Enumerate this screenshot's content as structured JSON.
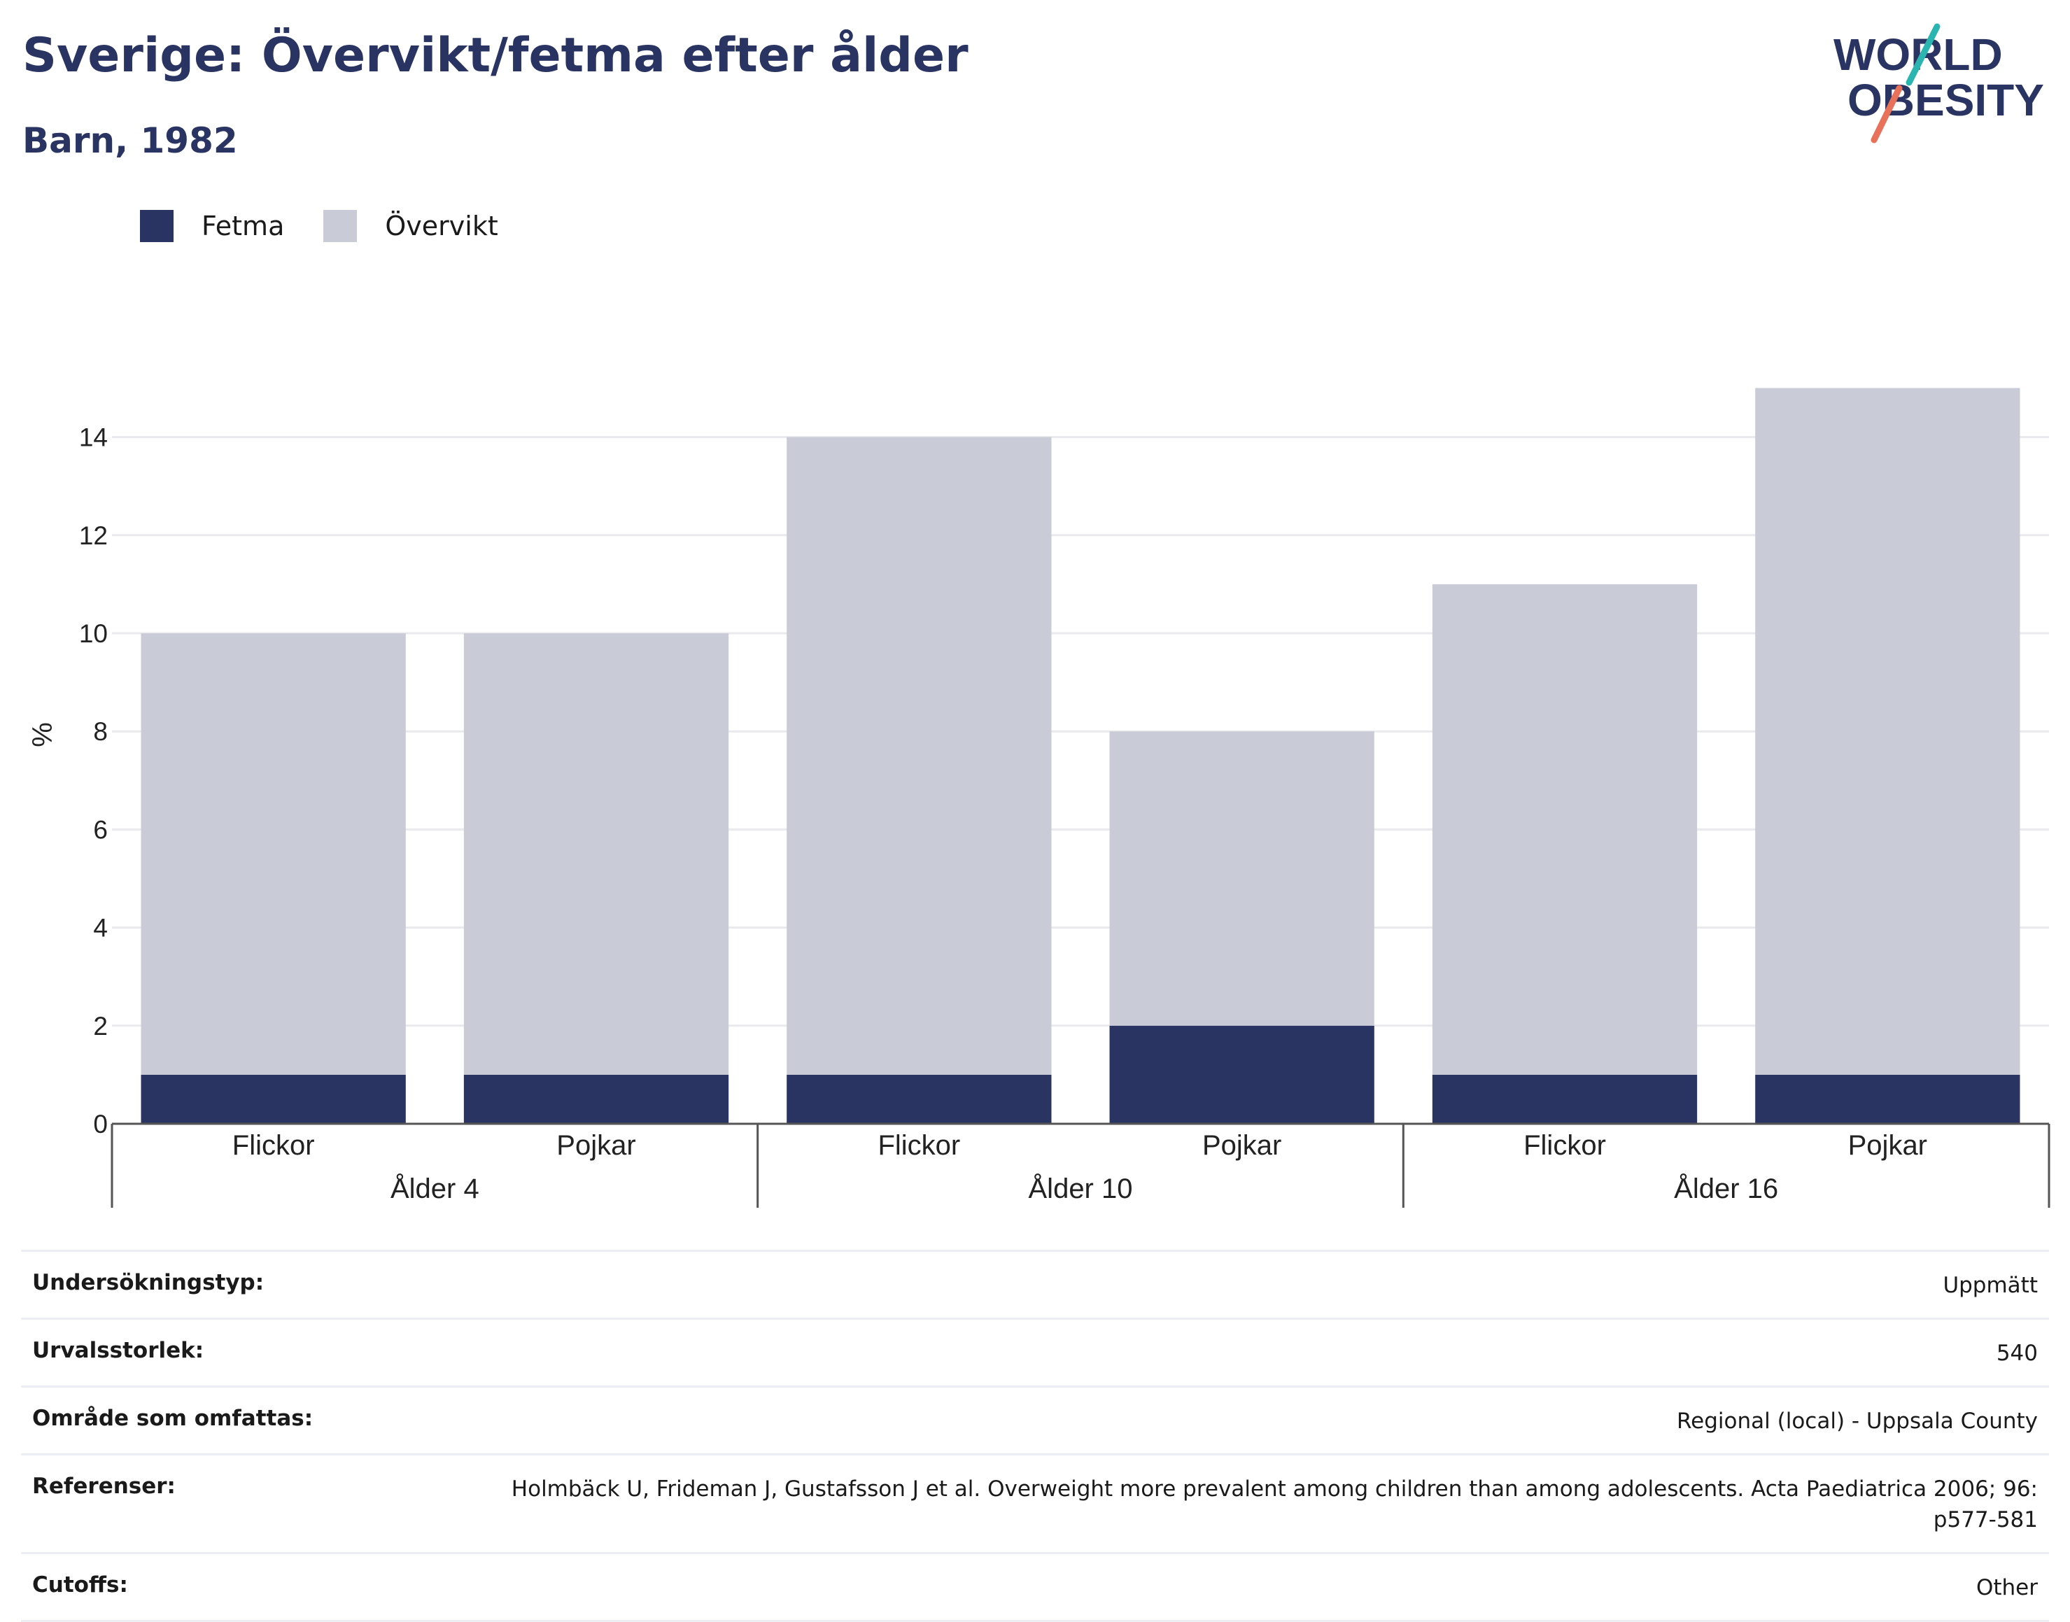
{
  "header": {
    "title": "Sverige: Övervikt/fetma efter ålder",
    "subtitle": "Barn, 1982",
    "logo_line1": "WORLD",
    "logo_line2": "OBESITY"
  },
  "colors": {
    "fetma": "#2a3462",
    "overvikt": "#c9cbd6",
    "logo_teal": "#2bb5b0",
    "logo_coral": "#e8715a"
  },
  "chart_data": {
    "type": "bar",
    "stacked": true,
    "ylabel": "%",
    "ylim": [
      0,
      15.9
    ],
    "yticks": [
      0,
      2,
      4,
      6,
      8,
      10,
      12,
      14
    ],
    "grid": true,
    "legend_placement": "top-left",
    "groups": [
      {
        "label": "Ålder 4",
        "categories": [
          "Flickor",
          "Pojkar"
        ]
      },
      {
        "label": "Ålder 10",
        "categories": [
          "Flickor",
          "Pojkar"
        ]
      },
      {
        "label": "Ålder 16",
        "categories": [
          "Flickor",
          "Pojkar"
        ]
      }
    ],
    "series": [
      {
        "name": "Fetma",
        "values": [
          1,
          1,
          1,
          2,
          1,
          1
        ]
      },
      {
        "name": "Övervikt",
        "values": [
          9,
          9,
          13,
          6,
          10,
          14
        ]
      }
    ]
  },
  "info": [
    {
      "label": "Undersökningstyp:",
      "value": "Uppmätt"
    },
    {
      "label": "Urvalsstorlek:",
      "value": "540"
    },
    {
      "label": "Område som omfattas:",
      "value": "Regional (local) - Uppsala County"
    },
    {
      "label": "Referenser:",
      "value": "Holmbäck U, Frideman J, Gustafsson J et al. Overweight more prevalent among children than among adolescents. Acta Paediatrica 2006; 96: p577-581"
    },
    {
      "label": "Cutoffs:",
      "value": "Other"
    }
  ]
}
